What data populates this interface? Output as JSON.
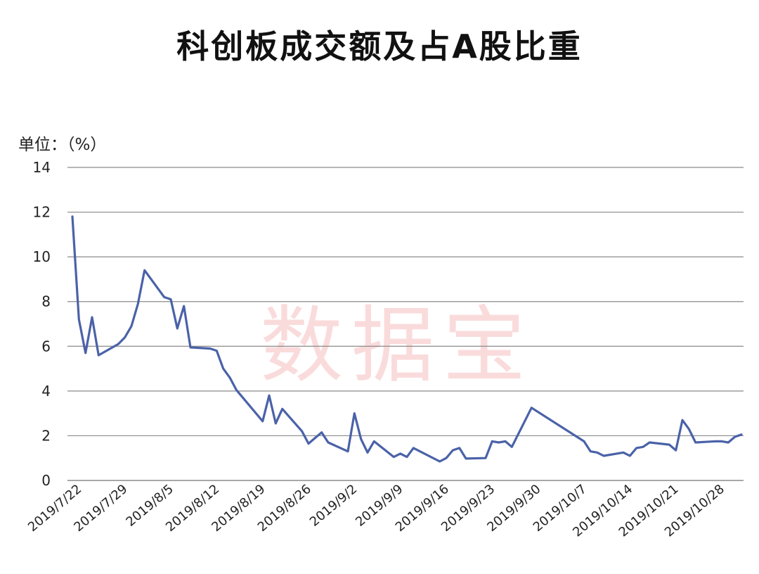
{
  "title": "科创板成交额及占A股比重",
  "unit_label": "单位：（%）",
  "watermark": "数据宝",
  "colors": {
    "line": "#4a62a8",
    "grid": "#8a8a8a",
    "watermark": "#e85a5a"
  },
  "chart_data": {
    "type": "line",
    "title": "科创板成交额及占A股比重",
    "ylabel": "单位：（%）",
    "ylim": [
      0,
      14
    ],
    "yticks": [
      "0",
      "2",
      "4",
      "6",
      "8",
      "10",
      "12",
      "14"
    ],
    "xticks": [
      "2019/7/22",
      "2019/7/29",
      "2019/8/5",
      "2019/8/12",
      "2019/8/19",
      "2019/8/26",
      "2019/9/2",
      "2019/9/9",
      "2019/9/16",
      "2019/9/23",
      "2019/9/30",
      "2019/10/7",
      "2019/10/14",
      "2019/10/21",
      "2019/10/28"
    ],
    "grid": true,
    "series": [
      {
        "x": [
          "2019/7/22",
          "2019/7/23",
          "2019/7/24",
          "2019/7/25",
          "2019/7/26",
          "2019/7/29",
          "2019/7/30",
          "2019/7/31",
          "2019/8/1",
          "2019/8/2",
          "2019/8/5",
          "2019/8/6",
          "2019/8/7",
          "2019/8/8",
          "2019/8/9",
          "2019/8/12",
          "2019/8/13",
          "2019/8/14",
          "2019/8/15",
          "2019/8/16",
          "2019/8/19",
          "2019/8/20",
          "2019/8/21",
          "2019/8/22",
          "2019/8/23",
          "2019/8/26",
          "2019/8/27",
          "2019/8/28",
          "2019/8/29",
          "2019/8/30",
          "2019/9/2",
          "2019/9/3",
          "2019/9/4",
          "2019/9/5",
          "2019/9/6",
          "2019/9/9",
          "2019/9/10",
          "2019/9/11",
          "2019/9/12",
          "2019/9/16",
          "2019/9/17",
          "2019/9/18",
          "2019/9/19",
          "2019/9/20",
          "2019/9/23",
          "2019/9/24",
          "2019/9/25",
          "2019/9/26",
          "2019/9/27",
          "2019/9/30",
          "2019/10/8",
          "2019/10/9",
          "2019/10/10",
          "2019/10/11",
          "2019/10/14",
          "2019/10/15",
          "2019/10/16",
          "2019/10/17",
          "2019/10/18",
          "2019/10/21",
          "2019/10/22",
          "2019/10/23",
          "2019/10/24",
          "2019/10/25",
          "2019/10/28",
          "2019/10/29",
          "2019/10/30",
          "2019/10/31",
          "2019/11/1"
        ],
        "values": [
          11.8,
          7.2,
          5.7,
          7.3,
          5.6,
          6.1,
          6.4,
          6.9,
          7.9,
          9.4,
          8.2,
          8.1,
          6.8,
          7.8,
          5.95,
          5.9,
          5.8,
          5.0,
          4.6,
          4.05,
          3.0,
          2.65,
          3.8,
          2.55,
          3.2,
          2.2,
          1.65,
          1.9,
          2.15,
          1.7,
          1.3,
          3.0,
          1.85,
          1.25,
          1.75,
          1.05,
          1.2,
          1.05,
          1.45,
          0.85,
          1.0,
          1.35,
          1.45,
          0.98,
          1.0,
          1.75,
          1.7,
          1.75,
          1.5,
          3.25,
          1.75,
          1.3,
          1.25,
          1.1,
          1.25,
          1.1,
          1.45,
          1.5,
          1.7,
          1.6,
          1.35,
          2.7,
          2.3,
          1.7,
          1.75,
          1.75,
          1.7,
          1.95,
          2.05
        ]
      }
    ]
  }
}
